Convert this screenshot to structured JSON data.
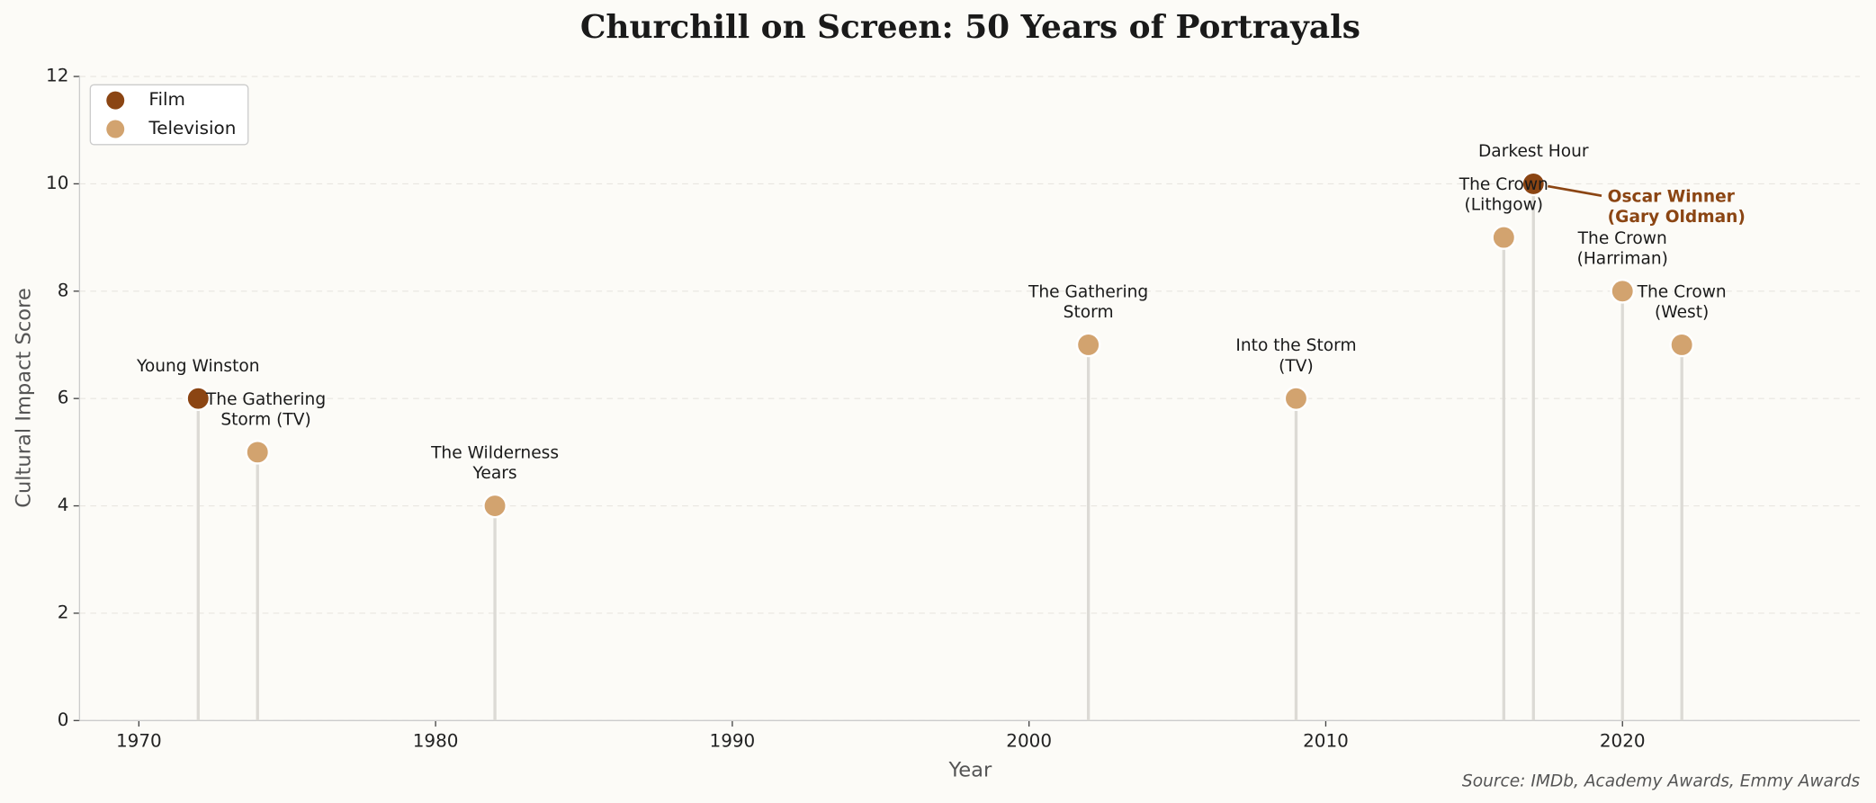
{
  "chart_data": {
    "type": "lollipop",
    "title": "Churchill on Screen: 50 Years of Portrayals",
    "xlabel": "Year",
    "ylabel": "Cultural Impact Score",
    "source": "Source: IMDb, Academy Awards, Emmy Awards",
    "xlim": [
      1968,
      2028
    ],
    "ylim": [
      0,
      12
    ],
    "xticks": [
      1970,
      1980,
      1990,
      2000,
      2010,
      2020
    ],
    "yticks": [
      0,
      2,
      4,
      6,
      8,
      10,
      12
    ],
    "grid": "y",
    "legend": "upper left",
    "series": [
      {
        "name": "Film",
        "color": "#8b4513",
        "x": [
          1972,
          2017
        ],
        "values": [
          6,
          10
        ],
        "labels": [
          [
            "Young Winston"
          ],
          [
            "Darkest Hour"
          ]
        ]
      },
      {
        "name": "Television",
        "color": "#d2a36f",
        "x": [
          1974,
          1982,
          2002,
          2009,
          2016,
          2020,
          2022
        ],
        "values": [
          5,
          4,
          7,
          6,
          9,
          8,
          7
        ],
        "labels": [
          [
            "The Gathering",
            "Storm (TV)"
          ],
          [
            "The Wilderness",
            "Years"
          ],
          [
            "The Gathering",
            "Storm"
          ],
          [
            "Into the Storm",
            "(TV)"
          ],
          [
            "The Crown",
            "(Lithgow)"
          ],
          [
            "The Crown",
            "(Harriman)"
          ],
          [
            "The Crown",
            "(West)"
          ]
        ]
      }
    ],
    "annotation": {
      "series": 0,
      "point": 1,
      "text": [
        "Oscar Winner",
        "(Gary Oldman)"
      ],
      "color": "#8b4513"
    }
  }
}
